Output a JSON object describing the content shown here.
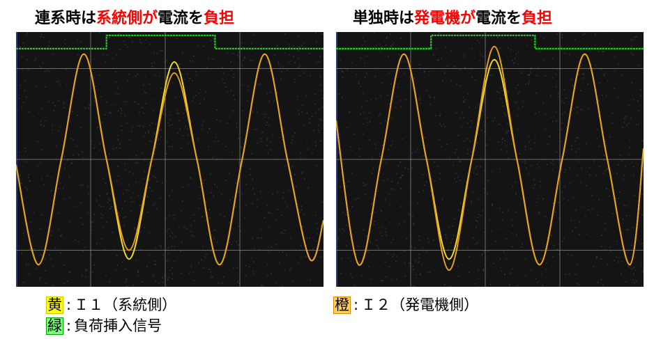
{
  "titles": {
    "left": {
      "p1": "連系時は",
      "p2": "系統側が",
      "p3": "電流を",
      "p4": "負担"
    },
    "right": {
      "p1": "単独時は",
      "p2": "発電機が",
      "p3": "電流を",
      "p4": "負担"
    }
  },
  "legend": {
    "yellow": {
      "swatch": "黄",
      "text": "Ｉ１（系統側）"
    },
    "orange": {
      "swatch": "橙",
      "text": "Ｉ２（発電機側）"
    },
    "green": {
      "swatch": "緑",
      "text": "負荷挿入信号"
    },
    "separator": ":"
  },
  "colors": {
    "background": "#141414",
    "grid": "#8c8c8c",
    "yellow": "#f5dc1e",
    "orange": "#e8a020",
    "green": "#22cc22",
    "highlight": "#ff0000"
  },
  "chart_data": [
    {
      "type": "line",
      "title": "連系時は系統側が電流を負担",
      "xlim": [
        0,
        3.4
      ],
      "ylim": [
        -1.15,
        1.15
      ],
      "grid": true,
      "series": [
        {
          "name": "Ｉ１（系統側）",
          "color": "#f5dc1e",
          "x": [
            0,
            0.25,
            0.5,
            0.75,
            1.0,
            1.25,
            1.5,
            1.75,
            2.0,
            2.25,
            2.5,
            2.75,
            3.0,
            3.25,
            3.4
          ],
          "y": [
            -0.05,
            -0.95,
            0.0,
            0.95,
            0.0,
            -0.9,
            0.0,
            0.88,
            0.0,
            -0.95,
            0.0,
            0.95,
            0.0,
            -0.9,
            -0.55
          ]
        },
        {
          "name": "Ｉ２（発電機側）",
          "color": "#e8a020",
          "x": [
            0,
            0.25,
            0.5,
            0.75,
            1.0,
            1.25,
            1.5,
            1.75,
            2.0,
            2.25,
            2.5,
            2.75,
            3.0,
            3.25,
            3.4
          ],
          "y": [
            -0.05,
            -0.95,
            0.0,
            0.95,
            0.0,
            -0.82,
            0.0,
            0.78,
            0.0,
            -0.95,
            0.0,
            0.95,
            0.0,
            -0.9,
            -0.55
          ]
        },
        {
          "name": "負荷挿入信号",
          "color": "#22cc22",
          "x": [
            0,
            1.0,
            1.0,
            2.2,
            2.2,
            3.4
          ],
          "y": [
            1.0,
            1.0,
            1.12,
            1.12,
            1.0,
            1.0
          ]
        }
      ]
    },
    {
      "type": "line",
      "title": "単独時は発電機が電流を負担",
      "xlim": [
        0,
        3.4
      ],
      "ylim": [
        -1.15,
        1.15
      ],
      "grid": true,
      "series": [
        {
          "name": "Ｉ１（系統側）",
          "color": "#f5dc1e",
          "x": [
            0,
            0.25,
            0.5,
            0.75,
            1.0,
            1.25,
            1.5,
            1.75,
            2.0,
            2.25,
            2.5,
            2.75,
            3.0,
            3.25,
            3.4
          ],
          "y": [
            0.35,
            -0.95,
            0.0,
            0.95,
            0.0,
            -0.9,
            0.0,
            0.9,
            0.0,
            -0.95,
            0.0,
            0.95,
            0.0,
            -0.95,
            0.1
          ]
        },
        {
          "name": "Ｉ２（発電機側）",
          "color": "#e8a020",
          "x": [
            0,
            0.25,
            0.5,
            0.75,
            1.0,
            1.25,
            1.5,
            1.75,
            2.0,
            2.25,
            2.5,
            2.75,
            3.0,
            3.25,
            3.4
          ],
          "y": [
            0.35,
            -0.95,
            0.0,
            0.95,
            0.0,
            -1.0,
            0.0,
            1.02,
            0.0,
            -0.95,
            0.0,
            0.95,
            0.0,
            -0.95,
            0.1
          ]
        },
        {
          "name": "負荷挿入信号",
          "color": "#22cc22",
          "x": [
            0,
            1.05,
            1.05,
            2.2,
            2.2,
            3.4
          ],
          "y": [
            1.0,
            1.0,
            1.12,
            1.12,
            1.0,
            1.0
          ]
        }
      ]
    }
  ]
}
